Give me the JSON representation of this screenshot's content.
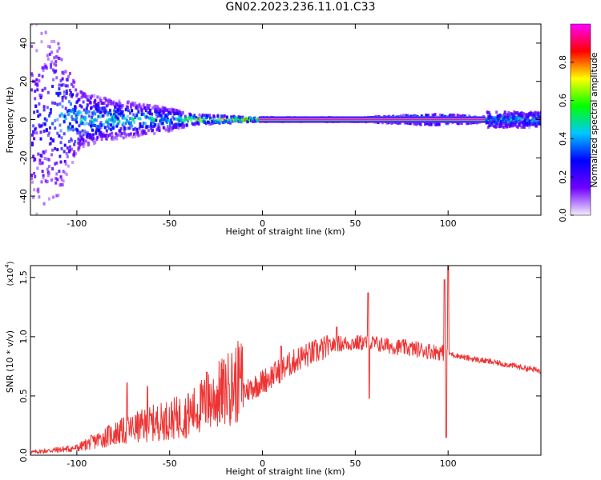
{
  "title": "GN02.2023.236.11.01.C33",
  "chart_data": [
    {
      "type": "heatmap",
      "xlabel": "Height of straight line (km)",
      "ylabel": "Frequency (Hz)",
      "xlim": [
        -125,
        150
      ],
      "ylim": [
        -50,
        50
      ],
      "x_ticks": [
        -100,
        -50,
        0,
        50,
        100
      ],
      "y_ticks": [
        -40,
        -20,
        0,
        20,
        40
      ],
      "grid": false,
      "colorbar": {
        "label": "Normalized spectral amplitude",
        "range": [
          0,
          1
        ],
        "ticks": [
          "0.0",
          "0.2",
          "0.4",
          "0.6",
          "0.8"
        ],
        "colormap": [
          "#f4eefc",
          "#7000ff",
          "#0000ff",
          "#00c8ff",
          "#00ff00",
          "#ffff00",
          "#ff0000",
          "#ff00ff"
        ]
      },
      "profile": [
        {
          "x": -120,
          "spread": 50,
          "amp": 0.3
        },
        {
          "x": -110,
          "spread": 40,
          "amp": 0.45
        },
        {
          "x": -100,
          "spread": 16,
          "amp": 0.55
        },
        {
          "x": -90,
          "spread": 12,
          "amp": 0.55
        },
        {
          "x": -70,
          "spread": 9,
          "amp": 0.55
        },
        {
          "x": -50,
          "spread": 6,
          "amp": 0.55
        },
        {
          "x": -40,
          "spread": 3,
          "amp": 0.8
        },
        {
          "x": -20,
          "spread": 2,
          "amp": 0.85
        },
        {
          "x": -5,
          "spread": 1,
          "amp": 0.9
        },
        {
          "x": 0,
          "spread": 1,
          "amp": 1.0
        },
        {
          "x": 50,
          "spread": 1,
          "amp": 1.0
        },
        {
          "x": 92,
          "spread": 3,
          "amp": 0.75
        },
        {
          "x": 120,
          "spread": 1.5,
          "amp": 0.9
        },
        {
          "x": 135,
          "spread": 4,
          "amp": 0.45
        },
        {
          "x": 150,
          "spread": 4,
          "amp": 0.35
        }
      ]
    },
    {
      "type": "line",
      "xlabel": "Height of straight line (km)",
      "ylabel": "SNR (10 * v/v)",
      "y_scale_label": "(x10",
      "y_scale_exp": "4",
      "y_scale_close": ")",
      "xlim": [
        -125,
        150
      ],
      "ylim": [
        0,
        1.6
      ],
      "x_ticks": [
        -100,
        -50,
        0,
        50,
        100
      ],
      "y_ticks": [
        "0.0",
        "0.5",
        "1.0",
        "1.5"
      ],
      "grid": false,
      "series": [
        {
          "color": "#ee3333",
          "envelope": [
            {
              "x": -125,
              "y": 0.02
            },
            {
              "x": -100,
              "y": 0.05
            },
            {
              "x": -80,
              "y": 0.15
            },
            {
              "x": -60,
              "y": 0.22
            },
            {
              "x": -40,
              "y": 0.28
            },
            {
              "x": -20,
              "y": 0.45
            },
            {
              "x": 0,
              "y": 0.62
            },
            {
              "x": 20,
              "y": 0.82
            },
            {
              "x": 40,
              "y": 0.94
            },
            {
              "x": 55,
              "y": 0.95
            },
            {
              "x": 70,
              "y": 0.92
            },
            {
              "x": 90,
              "y": 0.88
            },
            {
              "x": 100,
              "y": 0.86
            },
            {
              "x": 110,
              "y": 0.82
            },
            {
              "x": 130,
              "y": 0.77
            },
            {
              "x": 150,
              "y": 0.71
            }
          ],
          "spikes": [
            {
              "x": -73,
              "y": 0.61
            },
            {
              "x": -62,
              "y": 0.58
            },
            {
              "x": -40,
              "y": 0.52
            },
            {
              "x": -30,
              "y": 0.7
            },
            {
              "x": -18,
              "y": 0.6
            },
            {
              "x": -12,
              "y": 0.65
            },
            {
              "x": 10,
              "y": 0.92
            },
            {
              "x": 40,
              "y": 1.08
            },
            {
              "x": 57,
              "y": 1.37
            },
            {
              "x": 57.5,
              "y": 0.48
            },
            {
              "x": 98,
              "y": 1.48
            },
            {
              "x": 99,
              "y": 0.15
            },
            {
              "x": 100,
              "y": 1.6
            }
          ]
        }
      ]
    }
  ]
}
